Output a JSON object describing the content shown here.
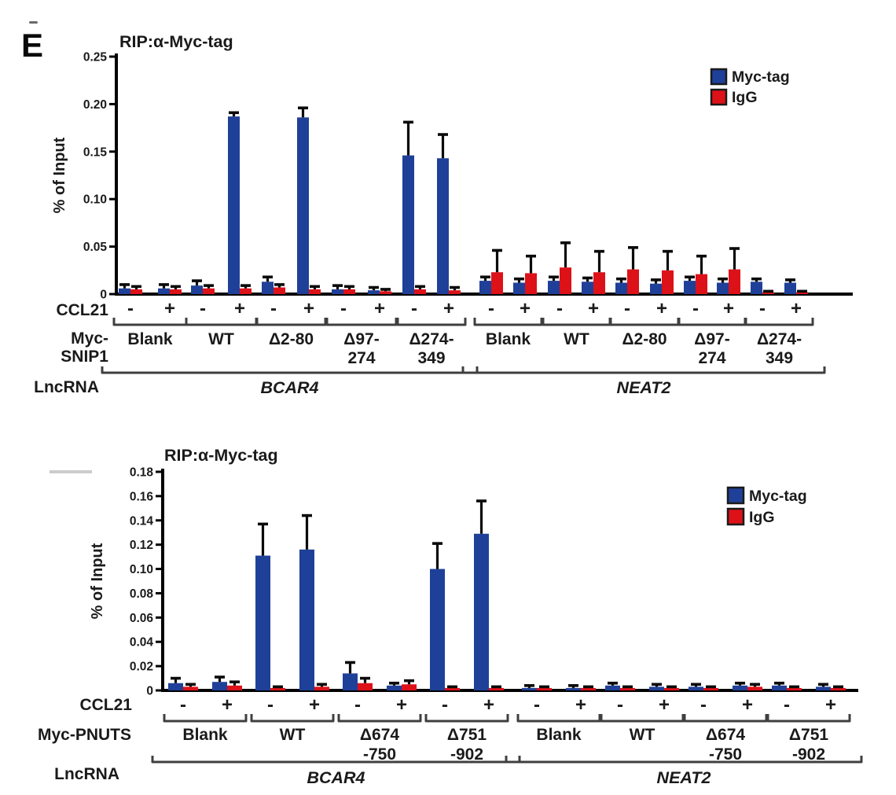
{
  "panel_label": "E",
  "chart_data": [
    {
      "type": "bar",
      "title": "RIP:α-Myc-tag",
      "ylabel": "% of Input",
      "ylim": [
        0,
        0.25
      ],
      "yticks": [
        "0",
        "0.05",
        "0.10",
        "0.15",
        "0.20",
        "0.25"
      ],
      "grid": false,
      "legend": {
        "position": "top-right",
        "entries": [
          {
            "label": "Myc-tag",
            "color": "#1f4098"
          },
          {
            "label": "IgG",
            "color": "#dd1118"
          }
        ]
      },
      "series_names": [
        "Myc-tag",
        "IgG"
      ],
      "row_labels": {
        "condition": "CCL21",
        "construct_lines": [
          "Myc-",
          "SNIP1"
        ],
        "lncrna": "LncRNA"
      },
      "sections": [
        {
          "lncrna": "BCAR4",
          "groups": [
            {
              "label_lines": [
                "Blank"
              ],
              "bars": [
                {
                  "sign": "-",
                  "myc": 0.006,
                  "myc_err": 0.004,
                  "igg": 0.005,
                  "igg_err": 0.003
                },
                {
                  "sign": "+",
                  "myc": 0.006,
                  "myc_err": 0.004,
                  "igg": 0.005,
                  "igg_err": 0.003
                }
              ]
            },
            {
              "label_lines": [
                "WT"
              ],
              "bars": [
                {
                  "sign": "-",
                  "myc": 0.009,
                  "myc_err": 0.005,
                  "igg": 0.006,
                  "igg_err": 0.003
                },
                {
                  "sign": "+",
                  "myc": 0.187,
                  "myc_err": 0.004,
                  "igg": 0.006,
                  "igg_err": 0.003
                }
              ]
            },
            {
              "label_lines": [
                "Δ2-80"
              ],
              "bars": [
                {
                  "sign": "-",
                  "myc": 0.013,
                  "myc_err": 0.005,
                  "igg": 0.007,
                  "igg_err": 0.003
                },
                {
                  "sign": "+",
                  "myc": 0.186,
                  "myc_err": 0.01,
                  "igg": 0.005,
                  "igg_err": 0.003
                }
              ]
            },
            {
              "label_lines": [
                "Δ97-",
                "274"
              ],
              "bars": [
                {
                  "sign": "-",
                  "myc": 0.005,
                  "myc_err": 0.004,
                  "igg": 0.005,
                  "igg_err": 0.003
                },
                {
                  "sign": "+",
                  "myc": 0.004,
                  "myc_err": 0.003,
                  "igg": 0.003,
                  "igg_err": 0.002
                }
              ]
            },
            {
              "label_lines": [
                "Δ274-",
                "349"
              ],
              "bars": [
                {
                  "sign": "-",
                  "myc": 0.146,
                  "myc_err": 0.035,
                  "igg": 0.005,
                  "igg_err": 0.003
                },
                {
                  "sign": "+",
                  "myc": 0.143,
                  "myc_err": 0.025,
                  "igg": 0.004,
                  "igg_err": 0.003
                }
              ]
            }
          ]
        },
        {
          "lncrna": "NEAT2",
          "groups": [
            {
              "label_lines": [
                "Blank"
              ],
              "bars": [
                {
                  "sign": "-",
                  "myc": 0.014,
                  "myc_err": 0.004,
                  "igg": 0.023,
                  "igg_err": 0.023
                },
                {
                  "sign": "+",
                  "myc": 0.012,
                  "myc_err": 0.004,
                  "igg": 0.022,
                  "igg_err": 0.018
                }
              ]
            },
            {
              "label_lines": [
                "WT"
              ],
              "bars": [
                {
                  "sign": "-",
                  "myc": 0.014,
                  "myc_err": 0.004,
                  "igg": 0.028,
                  "igg_err": 0.026
                },
                {
                  "sign": "+",
                  "myc": 0.013,
                  "myc_err": 0.004,
                  "igg": 0.023,
                  "igg_err": 0.022
                }
              ]
            },
            {
              "label_lines": [
                "Δ2-80"
              ],
              "bars": [
                {
                  "sign": "-",
                  "myc": 0.012,
                  "myc_err": 0.004,
                  "igg": 0.026,
                  "igg_err": 0.023
                },
                {
                  "sign": "+",
                  "myc": 0.011,
                  "myc_err": 0.004,
                  "igg": 0.025,
                  "igg_err": 0.02
                }
              ]
            },
            {
              "label_lines": [
                "Δ97-",
                "274"
              ],
              "bars": [
                {
                  "sign": "-",
                  "myc": 0.014,
                  "myc_err": 0.004,
                  "igg": 0.021,
                  "igg_err": 0.019
                },
                {
                  "sign": "+",
                  "myc": 0.012,
                  "myc_err": 0.004,
                  "igg": 0.026,
                  "igg_err": 0.022
                }
              ]
            },
            {
              "label_lines": [
                "Δ274-",
                "349"
              ],
              "bars": [
                {
                  "sign": "-",
                  "myc": 0.013,
                  "myc_err": 0.003,
                  "igg": 0.002,
                  "igg_err": 0.001
                },
                {
                  "sign": "+",
                  "myc": 0.012,
                  "myc_err": 0.003,
                  "igg": 0.002,
                  "igg_err": 0.001
                }
              ]
            }
          ]
        }
      ]
    },
    {
      "type": "bar",
      "title": "RIP:α-Myc-tag",
      "ylabel": "% of Input",
      "ylim": [
        0,
        0.18
      ],
      "yticks": [
        "0",
        "0.02",
        "0.04",
        "0.06",
        "0.08",
        "0.10",
        "0.12",
        "0.14",
        "0.16",
        "0.18"
      ],
      "grid": false,
      "legend": {
        "position": "top-right",
        "entries": [
          {
            "label": "Myc-tag",
            "color": "#1f4098"
          },
          {
            "label": "IgG",
            "color": "#dd1118"
          }
        ]
      },
      "series_names": [
        "Myc-tag",
        "IgG"
      ],
      "row_labels": {
        "condition": "CCL21",
        "construct_lines": [
          "Myc-PNUTS"
        ],
        "lncrna": "LncRNA"
      },
      "sections": [
        {
          "lncrna": "BCAR4",
          "groups": [
            {
              "label_lines": [
                "Blank"
              ],
              "bars": [
                {
                  "sign": "-",
                  "myc": 0.006,
                  "myc_err": 0.004,
                  "igg": 0.003,
                  "igg_err": 0.002
                },
                {
                  "sign": "+",
                  "myc": 0.007,
                  "myc_err": 0.004,
                  "igg": 0.004,
                  "igg_err": 0.003
                }
              ]
            },
            {
              "label_lines": [
                "WT"
              ],
              "bars": [
                {
                  "sign": "-",
                  "myc": 0.111,
                  "myc_err": 0.026,
                  "igg": 0.002,
                  "igg_err": 0.001
                },
                {
                  "sign": "+",
                  "myc": 0.116,
                  "myc_err": 0.028,
                  "igg": 0.003,
                  "igg_err": 0.002
                }
              ]
            },
            {
              "label_lines": [
                "Δ674",
                "-750"
              ],
              "bars": [
                {
                  "sign": "-",
                  "myc": 0.014,
                  "myc_err": 0.009,
                  "igg": 0.006,
                  "igg_err": 0.004
                },
                {
                  "sign": "+",
                  "myc": 0.004,
                  "myc_err": 0.002,
                  "igg": 0.005,
                  "igg_err": 0.003
                }
              ]
            },
            {
              "label_lines": [
                "Δ751",
                "-902"
              ],
              "bars": [
                {
                  "sign": "-",
                  "myc": 0.1,
                  "myc_err": 0.021,
                  "igg": 0.002,
                  "igg_err": 0.001
                },
                {
                  "sign": "+",
                  "myc": 0.129,
                  "myc_err": 0.027,
                  "igg": 0.002,
                  "igg_err": 0.001
                }
              ]
            }
          ]
        },
        {
          "lncrna": "NEAT2",
          "groups": [
            {
              "label_lines": [
                "Blank"
              ],
              "bars": [
                {
                  "sign": "-",
                  "myc": 0.002,
                  "myc_err": 0.002,
                  "igg": 0.002,
                  "igg_err": 0.001
                },
                {
                  "sign": "+",
                  "myc": 0.002,
                  "myc_err": 0.002,
                  "igg": 0.002,
                  "igg_err": 0.001
                }
              ]
            },
            {
              "label_lines": [
                "WT"
              ],
              "bars": [
                {
                  "sign": "-",
                  "myc": 0.004,
                  "myc_err": 0.002,
                  "igg": 0.002,
                  "igg_err": 0.001
                },
                {
                  "sign": "+",
                  "myc": 0.003,
                  "myc_err": 0.002,
                  "igg": 0.002,
                  "igg_err": 0.001
                }
              ]
            },
            {
              "label_lines": [
                "Δ674",
                "-750"
              ],
              "bars": [
                {
                  "sign": "-",
                  "myc": 0.003,
                  "myc_err": 0.002,
                  "igg": 0.002,
                  "igg_err": 0.001
                },
                {
                  "sign": "+",
                  "myc": 0.004,
                  "myc_err": 0.002,
                  "igg": 0.003,
                  "igg_err": 0.002
                }
              ]
            },
            {
              "label_lines": [
                "Δ751",
                "-902"
              ],
              "bars": [
                {
                  "sign": "-",
                  "myc": 0.004,
                  "myc_err": 0.002,
                  "igg": 0.002,
                  "igg_err": 0.001
                },
                {
                  "sign": "+",
                  "myc": 0.003,
                  "myc_err": 0.002,
                  "igg": 0.002,
                  "igg_err": 0.001
                }
              ]
            }
          ]
        }
      ]
    }
  ]
}
